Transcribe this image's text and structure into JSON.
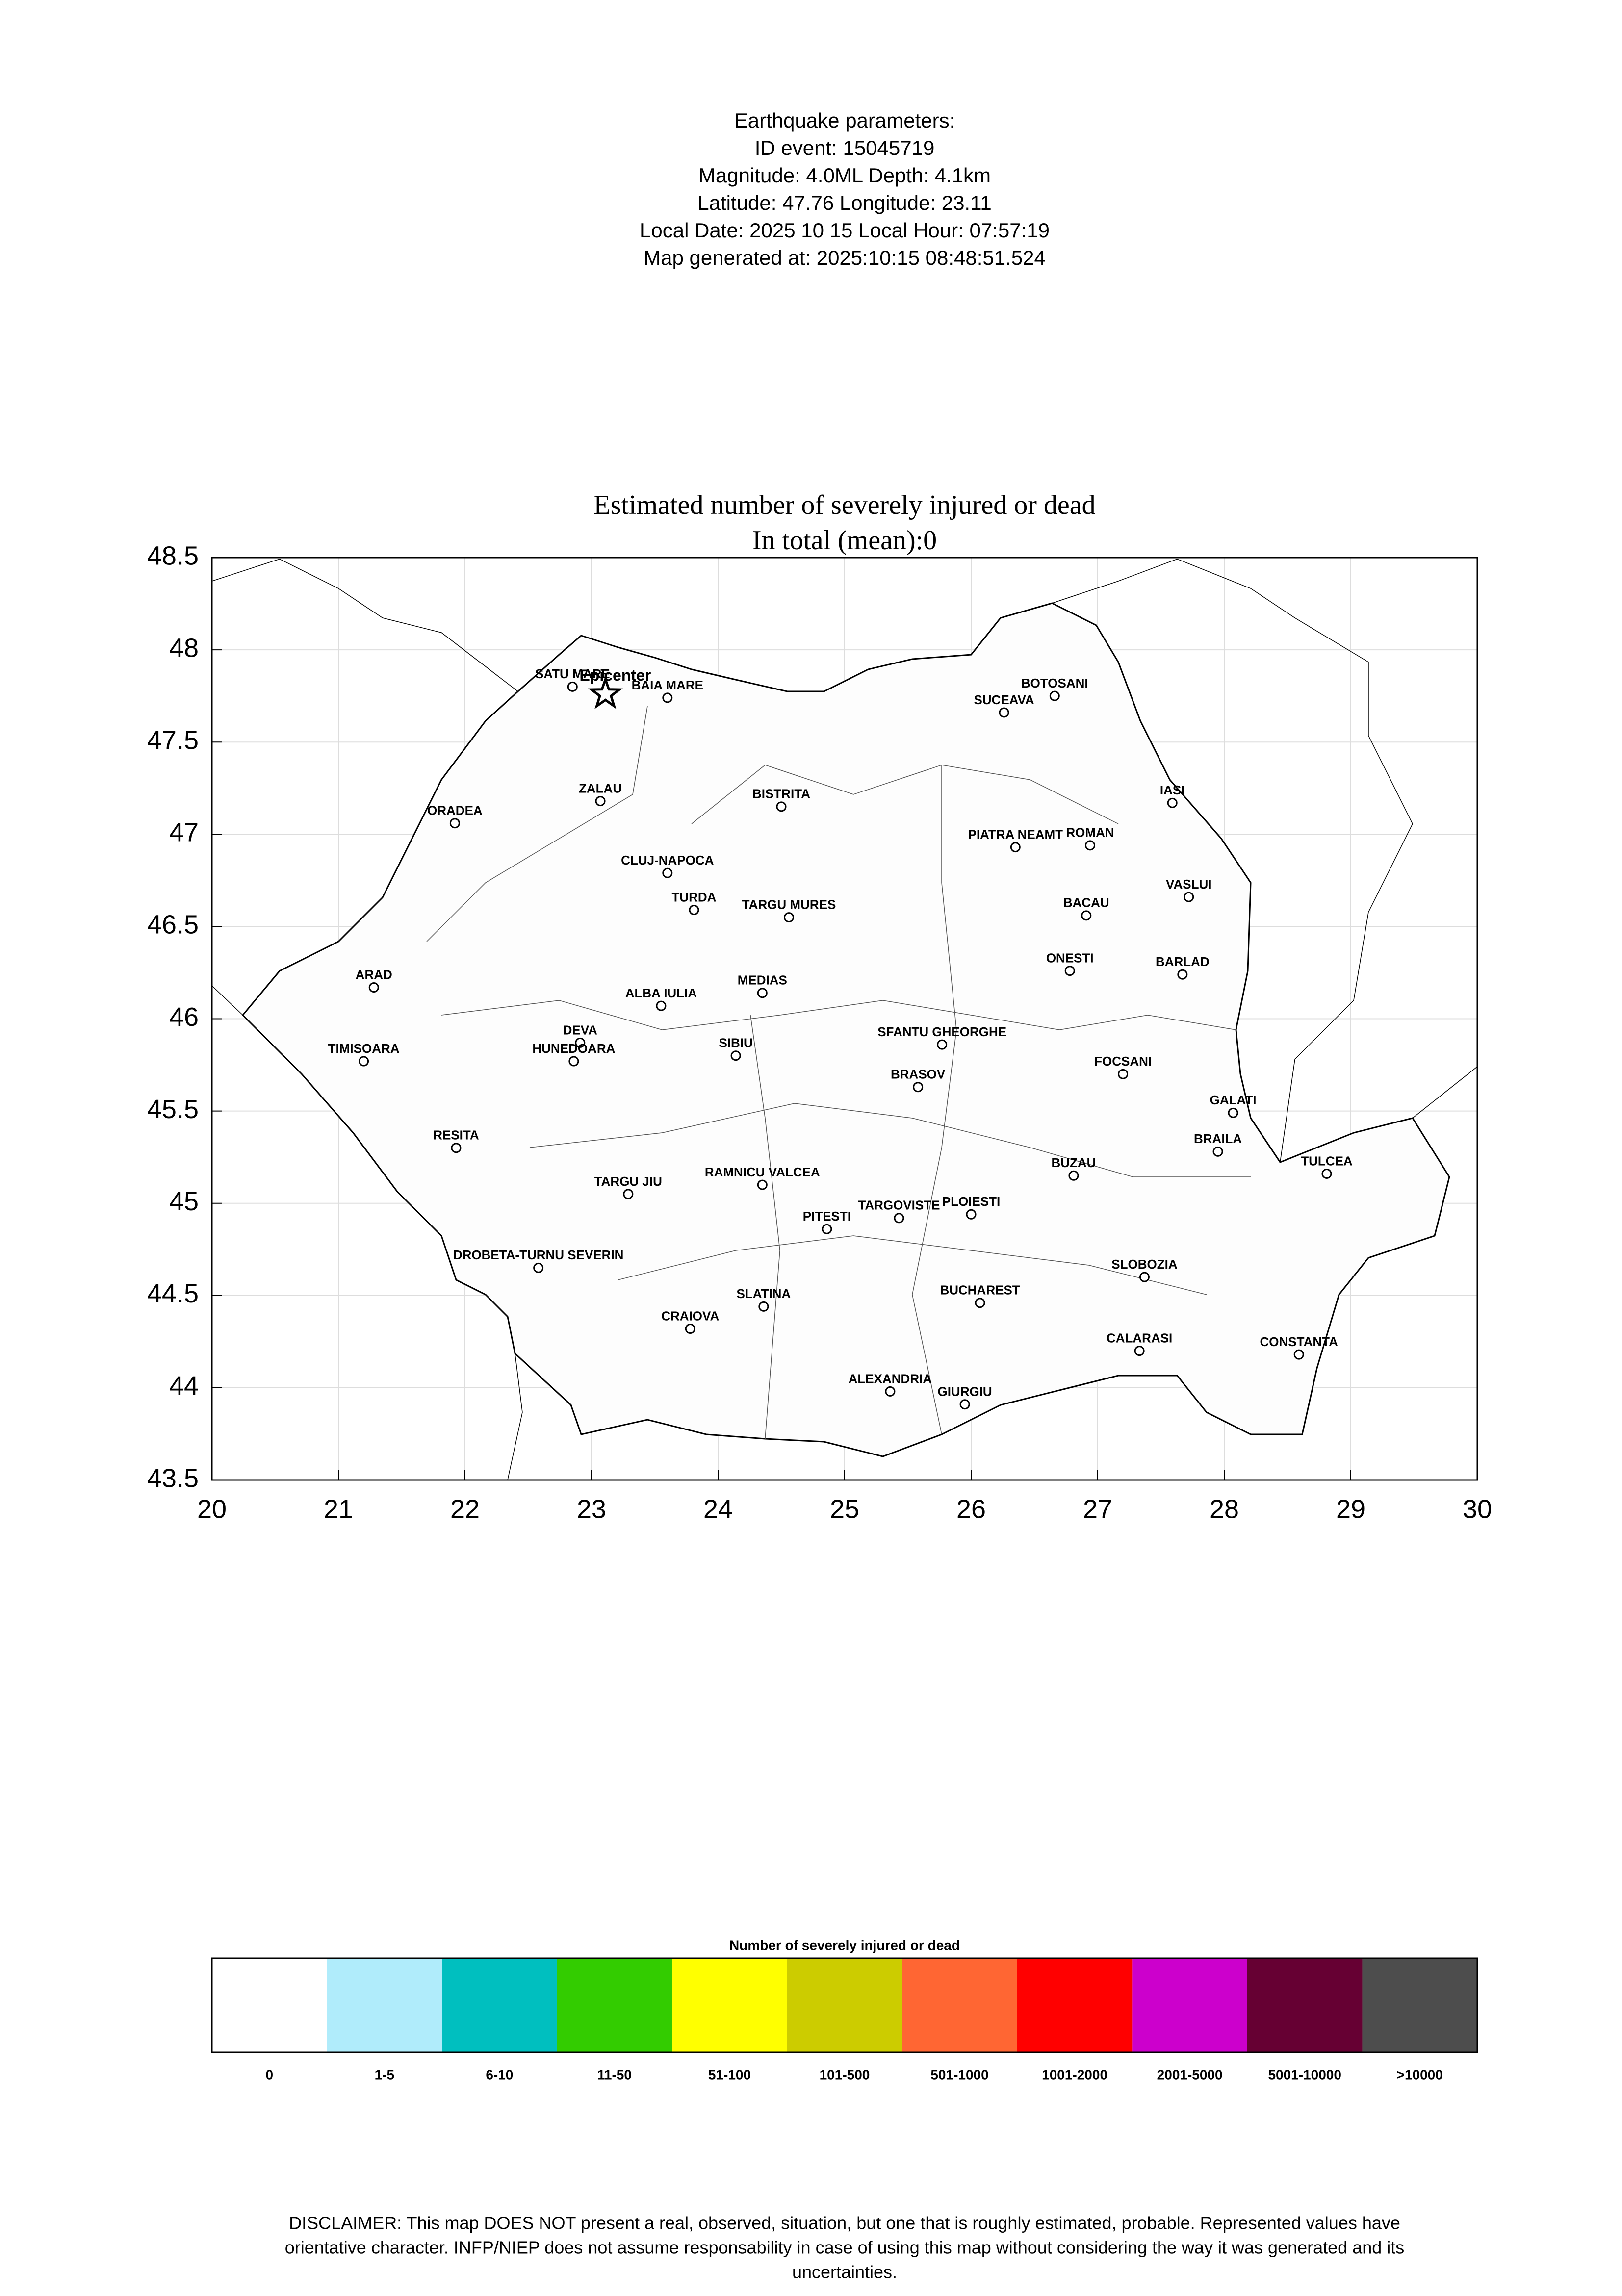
{
  "header": {
    "lines": [
      "Earthquake parameters:",
      "ID event: 15045719",
      "Magnitude: 4.0ML Depth: 4.1km",
      "Latitude: 47.76  Longitude: 23.11",
      "Local Date: 2025 10 15  Local Hour: 07:57:19",
      "Map generated at: 2025:10:15 08:48:51.524"
    ]
  },
  "map": {
    "title": "Estimated number of severely injured or dead",
    "subtitle": "In total (mean):0",
    "xlim": [
      20,
      30
    ],
    "ylim": [
      43.5,
      48.5
    ],
    "xticks": [
      20,
      21,
      22,
      23,
      24,
      25,
      26,
      27,
      28,
      29,
      30
    ],
    "yticks": [
      43.5,
      44,
      44.5,
      45,
      45.5,
      46,
      46.5,
      47,
      47.5,
      48,
      48.5
    ],
    "grid": true,
    "epicenter": {
      "label": "Epicenter",
      "lon": 23.11,
      "lat": 47.76
    },
    "cities": [
      {
        "name": "SATU MARE",
        "lon": 22.85,
        "lat": 47.8
      },
      {
        "name": "BAIA MARE",
        "lon": 23.6,
        "lat": 47.74
      },
      {
        "name": "BOTOSANI",
        "lon": 26.66,
        "lat": 47.75
      },
      {
        "name": "SUCEAVA",
        "lon": 26.26,
        "lat": 47.66
      },
      {
        "name": "ZALAU",
        "lon": 23.07,
        "lat": 47.18
      },
      {
        "name": "BISTRITA",
        "lon": 24.5,
        "lat": 47.15
      },
      {
        "name": "IASI",
        "lon": 27.59,
        "lat": 47.17
      },
      {
        "name": "ORADEA",
        "lon": 21.92,
        "lat": 47.06
      },
      {
        "name": "PIATRA NEAMT",
        "lon": 26.35,
        "lat": 46.93
      },
      {
        "name": "ROMAN",
        "lon": 26.94,
        "lat": 46.94
      },
      {
        "name": "CLUJ-NAPOCA",
        "lon": 23.6,
        "lat": 46.79
      },
      {
        "name": "TURDA",
        "lon": 23.81,
        "lat": 46.59
      },
      {
        "name": "TARGU MURES",
        "lon": 24.56,
        "lat": 46.55
      },
      {
        "name": "VASLUI",
        "lon": 27.72,
        "lat": 46.66
      },
      {
        "name": "BACAU",
        "lon": 26.91,
        "lat": 46.56
      },
      {
        "name": "ONESTI",
        "lon": 26.78,
        "lat": 46.26
      },
      {
        "name": "BARLAD",
        "lon": 27.67,
        "lat": 46.24
      },
      {
        "name": "ARAD",
        "lon": 21.28,
        "lat": 46.17
      },
      {
        "name": "MEDIAS",
        "lon": 24.35,
        "lat": 46.14
      },
      {
        "name": "ALBA IULIA",
        "lon": 23.55,
        "lat": 46.07
      },
      {
        "name": "DEVA",
        "lon": 22.91,
        "lat": 45.87
      },
      {
        "name": "HUNEDOARA",
        "lon": 22.86,
        "lat": 45.77
      },
      {
        "name": "SIBIU",
        "lon": 24.14,
        "lat": 45.8
      },
      {
        "name": "SFANTU GHEORGHE",
        "lon": 25.77,
        "lat": 45.86
      },
      {
        "name": "TIMISOARA",
        "lon": 21.2,
        "lat": 45.77
      },
      {
        "name": "FOCSANI",
        "lon": 27.2,
        "lat": 45.7
      },
      {
        "name": "BRASOV",
        "lon": 25.58,
        "lat": 45.63
      },
      {
        "name": "GALATI",
        "lon": 28.07,
        "lat": 45.49
      },
      {
        "name": "RESITA",
        "lon": 21.93,
        "lat": 45.3
      },
      {
        "name": "BRAILA",
        "lon": 27.95,
        "lat": 45.28
      },
      {
        "name": "TULCEA",
        "lon": 28.81,
        "lat": 45.16
      },
      {
        "name": "BUZAU",
        "lon": 26.81,
        "lat": 45.15
      },
      {
        "name": "RAMNICU VALCEA",
        "lon": 24.35,
        "lat": 45.1
      },
      {
        "name": "TARGU JIU",
        "lon": 23.29,
        "lat": 45.05
      },
      {
        "name": "PLOIESTI",
        "lon": 26.0,
        "lat": 44.94
      },
      {
        "name": "TARGOVISTE",
        "lon": 25.43,
        "lat": 44.92
      },
      {
        "name": "PITESTI",
        "lon": 24.86,
        "lat": 44.86
      },
      {
        "name": "DROBETA-TURNU SEVERIN",
        "lon": 22.58,
        "lat": 44.65
      },
      {
        "name": "SLOBOZIA",
        "lon": 27.37,
        "lat": 44.6
      },
      {
        "name": "SLATINA",
        "lon": 24.36,
        "lat": 44.44
      },
      {
        "name": "BUCHAREST",
        "lon": 26.07,
        "lat": 44.46
      },
      {
        "name": "CRAIOVA",
        "lon": 23.78,
        "lat": 44.32
      },
      {
        "name": "CALARASI",
        "lon": 27.33,
        "lat": 44.2
      },
      {
        "name": "CONSTANTA",
        "lon": 28.59,
        "lat": 44.18
      },
      {
        "name": "ALEXANDRIA",
        "lon": 25.36,
        "lat": 43.98
      },
      {
        "name": "GIURGIU",
        "lon": 25.95,
        "lat": 43.91
      }
    ]
  },
  "legend": {
    "title": "Number of severely injured or dead",
    "items": [
      {
        "label": "0",
        "color": "#ffffff"
      },
      {
        "label": "1-5",
        "color": "#b0ecfb"
      },
      {
        "label": "6-10",
        "color": "#00bfbf"
      },
      {
        "label": "11-50",
        "color": "#33cc00"
      },
      {
        "label": "51-100",
        "color": "#ffff00"
      },
      {
        "label": "101-500",
        "color": "#cccc00"
      },
      {
        "label": "501-1000",
        "color": "#ff6633"
      },
      {
        "label": "1001-2000",
        "color": "#ff0000"
      },
      {
        "label": "2001-5000",
        "color": "#cc00cc"
      },
      {
        "label": "5001-10000",
        "color": "#660033"
      },
      {
        "label": ">10000",
        "color": "#4d4d4d"
      }
    ]
  },
  "disclaimer": {
    "lines": [
      "DISCLAIMER: This map DOES NOT present a real, observed, situation, but one that is roughly estimated, probable. Represented values have",
      "orientative character. INFP/NIEP does not assume responsability in case of using this map without considering the way it was generated and its",
      "uncertainties."
    ]
  }
}
